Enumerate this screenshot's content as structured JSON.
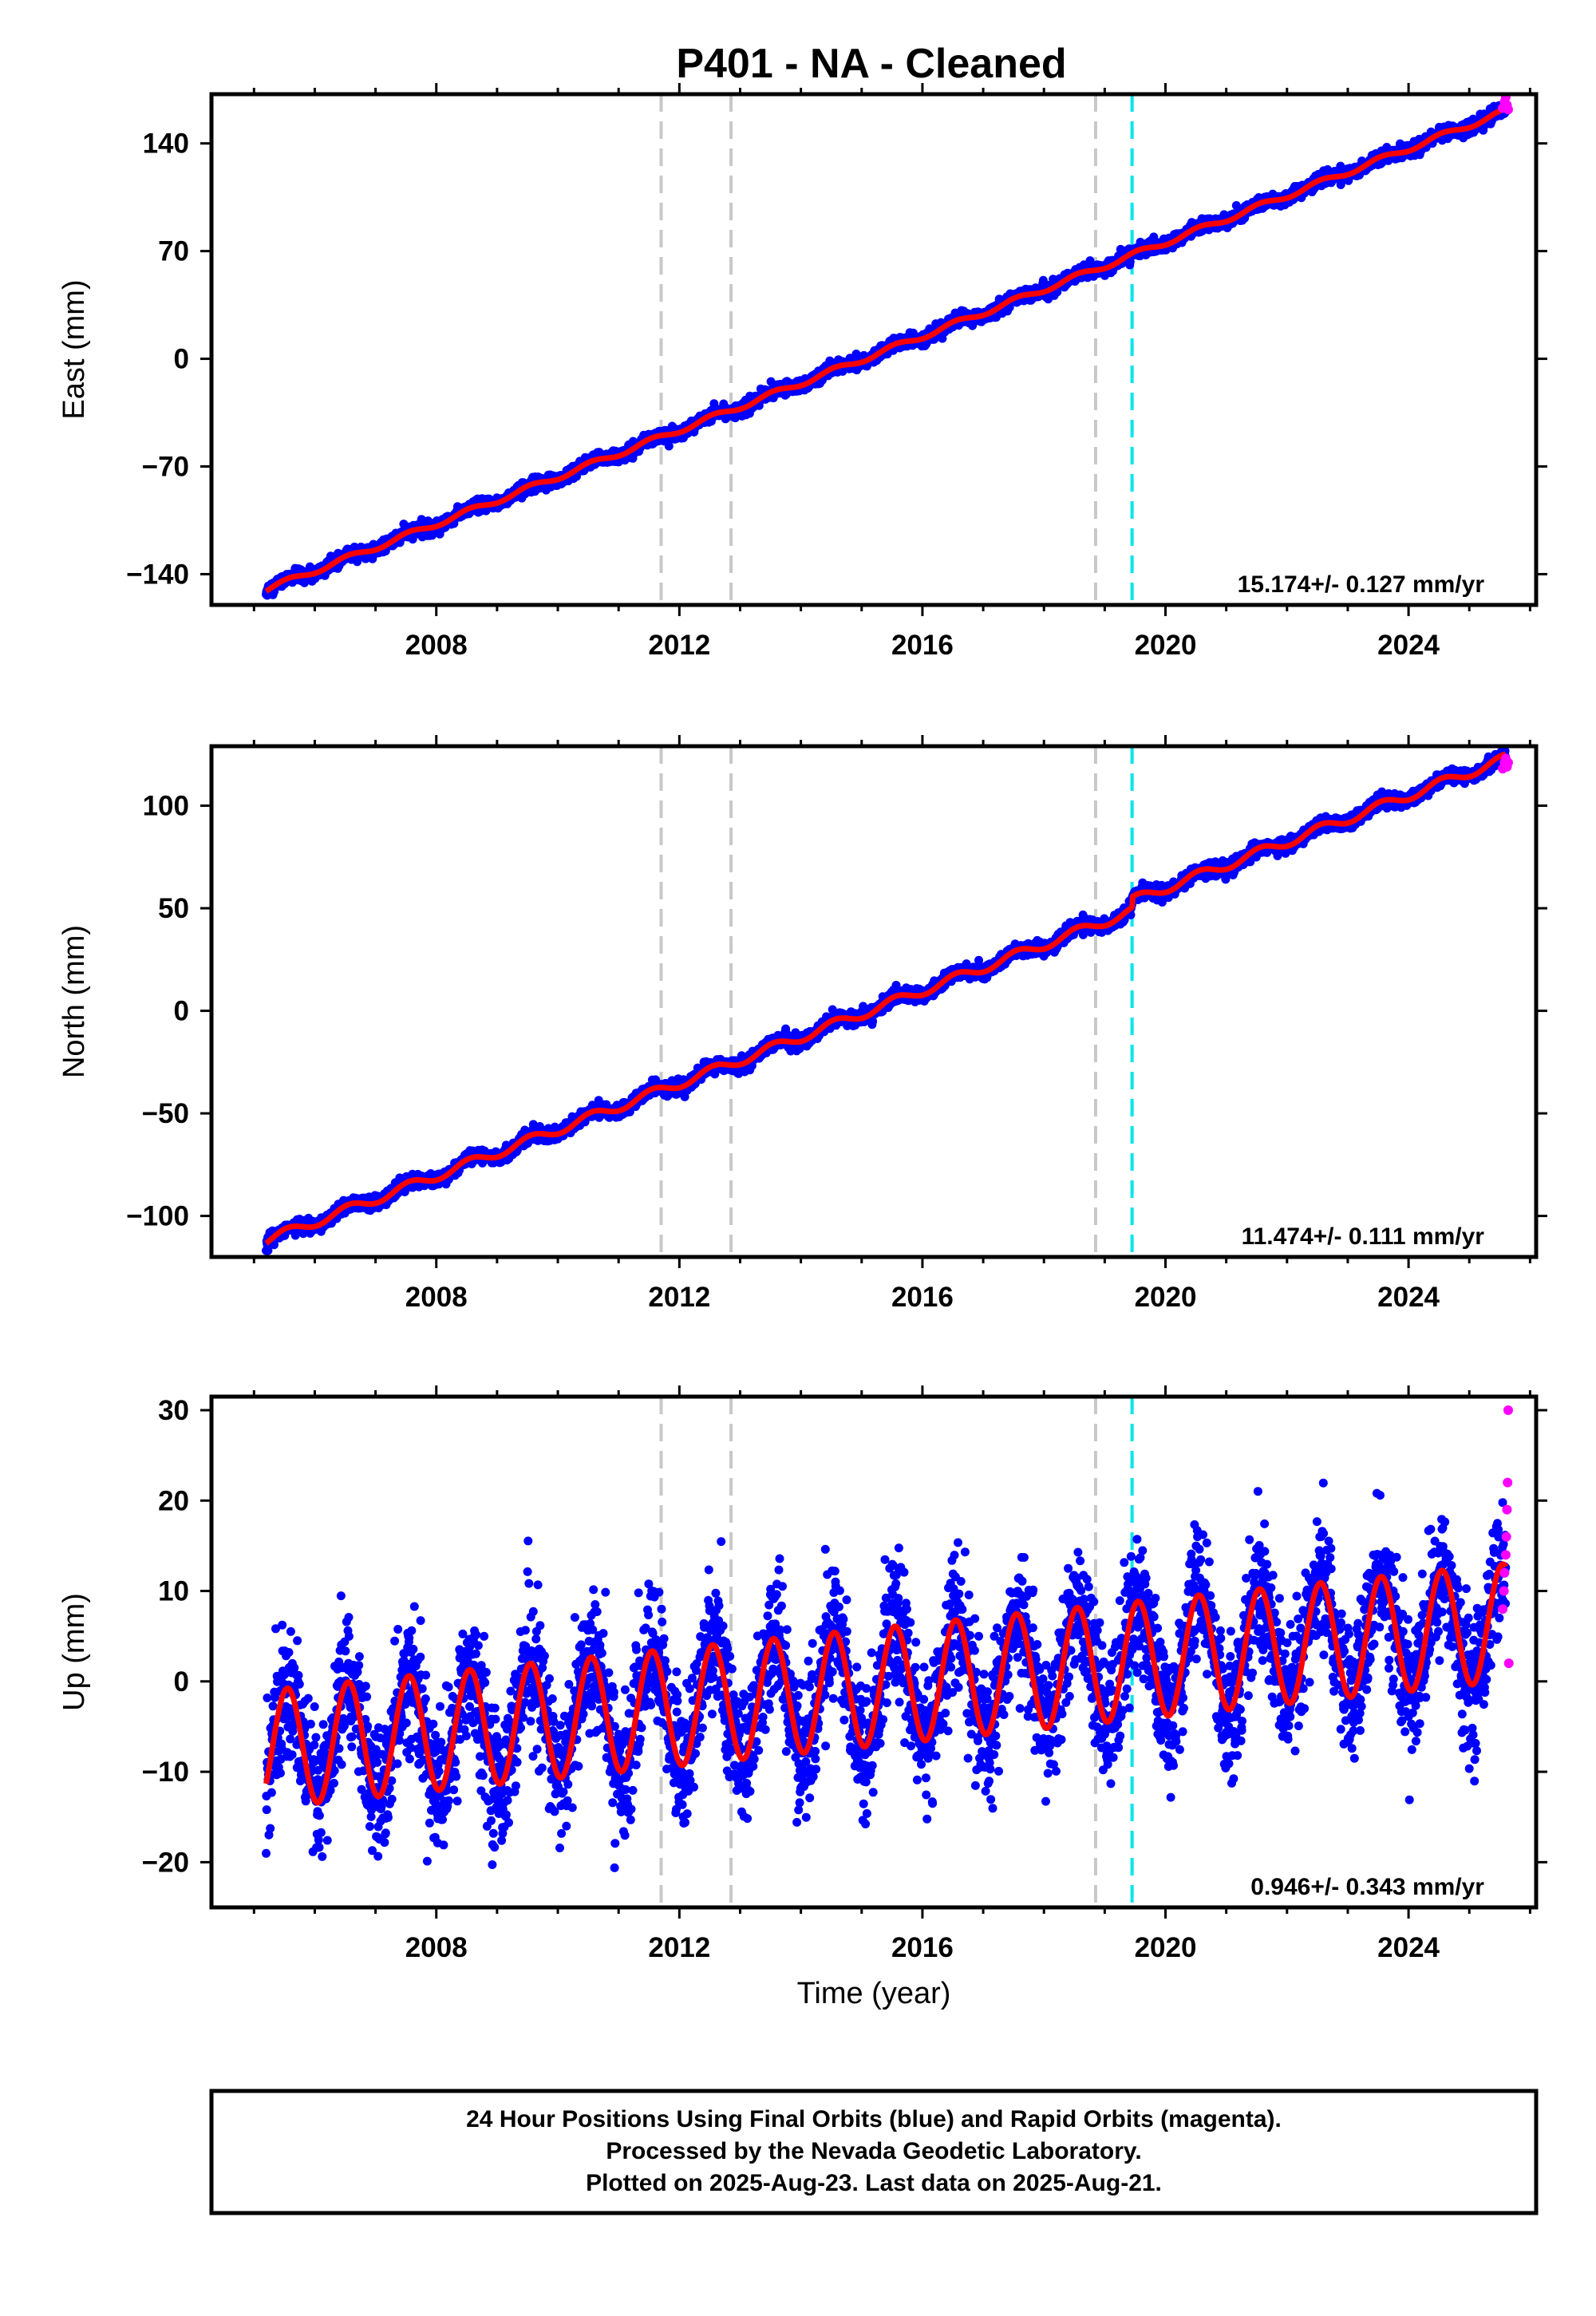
{
  "figure_title": "P401  - NA - Cleaned",
  "colors": {
    "final_orbits": "#0000ff",
    "rapid_orbits": "#ff00ff",
    "model": "#ff0000",
    "event_line": "#c8c8c8",
    "equipment_line": "#00e5ee"
  },
  "footer": {
    "line1": "24 Hour Positions Using Final Orbits (blue) and Rapid Orbits (magenta).",
    "line2": "Processed by the Nevada Geodetic Laboratory.",
    "line3": "Plotted on 2025-Aug-23. Last data on 2025-Aug-21."
  },
  "chart_data": [
    {
      "type": "scatter",
      "component": "East",
      "ylabel": "East (mm)",
      "xlabel": "",
      "xlim": [
        2004.3,
        2026.1
      ],
      "ylim": [
        -160,
        172
      ],
      "xticks": [
        "2008",
        "2012",
        "2016",
        "2020",
        "2024"
      ],
      "yticks": [
        "140",
        "70",
        "0",
        "−70",
        "−140"
      ],
      "rate_label": "15.174+/- 0.127 mm/yr",
      "start": {
        "x": 2005.2,
        "y": -150
      },
      "end": {
        "x": 2025.6,
        "y": 161
      },
      "seasonal_amplitude": 1.8,
      "scatter_noise": 2.0,
      "offsets": [],
      "vlines_gray": [
        2011.7,
        2012.85,
        2018.85
      ],
      "vlines_cyan": [
        2019.45
      ],
      "rapid_points": [
        {
          "x": 2025.55,
          "y": 163
        },
        {
          "x": 2025.58,
          "y": 167
        },
        {
          "x": 2025.6,
          "y": 170
        },
        {
          "x": 2025.62,
          "y": 165
        },
        {
          "x": 2025.64,
          "y": 162
        }
      ]
    },
    {
      "type": "scatter",
      "component": "North",
      "ylabel": "North (mm)",
      "xlabel": "",
      "xlim": [
        2004.3,
        2026.1
      ],
      "ylim": [
        -120,
        129
      ],
      "xticks": [
        "2008",
        "2012",
        "2016",
        "2020",
        "2024"
      ],
      "yticks": [
        "100",
        "50",
        "0",
        "−50",
        "−100"
      ],
      "rate_label": "11.474+/- 0.111 mm/yr",
      "start": {
        "x": 2005.2,
        "y": -112
      },
      "end": {
        "x": 2025.6,
        "y": 118
      },
      "seasonal_amplitude": 2.3,
      "scatter_noise": 1.6,
      "offsets": [
        {
          "x": 2019.45,
          "dy": 5
        }
      ],
      "vlines_gray": [
        2011.7,
        2012.85,
        2018.85
      ],
      "vlines_cyan": [
        2019.45
      ],
      "rapid_points": [
        {
          "x": 2025.55,
          "y": 118
        },
        {
          "x": 2025.58,
          "y": 121
        },
        {
          "x": 2025.6,
          "y": 123
        },
        {
          "x": 2025.62,
          "y": 119
        },
        {
          "x": 2025.64,
          "y": 121
        }
      ]
    },
    {
      "type": "scatter",
      "component": "Up",
      "ylabel": "Up (mm)",
      "xlabel": "Time (year)",
      "xlim": [
        2004.3,
        2026.1
      ],
      "ylim": [
        -25,
        31.5
      ],
      "xticks": [
        "2008",
        "2012",
        "2016",
        "2020",
        "2024"
      ],
      "yticks": [
        "30",
        "20",
        "10",
        "0",
        "−10",
        "−20"
      ],
      "rate_label": "0.946+/- 0.343 mm/yr",
      "start": {
        "x": 2005.2,
        "y": -7.5
      },
      "end": {
        "x": 2025.6,
        "y": 6.5
      },
      "seasonal_amplitude": 6.5,
      "scatter_noise": 3.6,
      "offsets": [],
      "vlines_gray": [
        2011.7,
        2012.85,
        2018.85
      ],
      "vlines_cyan": [
        2019.45
      ],
      "rapid_points": [
        {
          "x": 2025.55,
          "y": 8
        },
        {
          "x": 2025.57,
          "y": 10
        },
        {
          "x": 2025.58,
          "y": 12
        },
        {
          "x": 2025.6,
          "y": 14
        },
        {
          "x": 2025.61,
          "y": 16
        },
        {
          "x": 2025.62,
          "y": 19
        },
        {
          "x": 2025.63,
          "y": 22
        },
        {
          "x": 2025.64,
          "y": 30
        },
        {
          "x": 2025.65,
          "y": 2
        }
      ]
    }
  ]
}
